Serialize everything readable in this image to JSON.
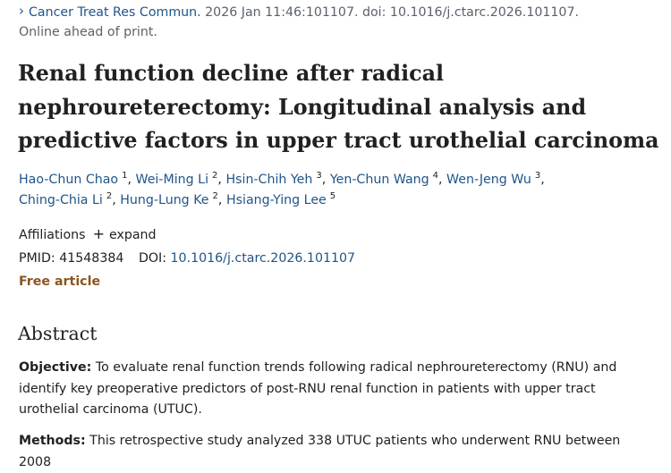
{
  "citation": {
    "journal": "Cancer Treat Res Commun.",
    "details": "2026 Jan 11:46:101107. doi: 10.1016/j.ctarc.2026.101107.",
    "status": "Online ahead of print."
  },
  "title": "Renal function decline after radical nephroureterectomy: Longitudinal analysis and predictive factors in upper tract urothelial carcinoma",
  "authors": [
    {
      "name": "Hao-Chun Chao",
      "aff": "1"
    },
    {
      "name": "Wei-Ming Li",
      "aff": "2"
    },
    {
      "name": "Hsin-Chih Yeh",
      "aff": "3"
    },
    {
      "name": "Yen-Chun Wang",
      "aff": "4"
    },
    {
      "name": "Wen-Jeng Wu",
      "aff": "3"
    },
    {
      "name": "Ching-Chia Li",
      "aff": "2"
    },
    {
      "name": "Hung-Lung Ke",
      "aff": "2"
    },
    {
      "name": "Hsiang-Ying Lee",
      "aff": "5"
    }
  ],
  "affiliations": {
    "label": "Affiliations",
    "expand": "expand"
  },
  "ids": {
    "pmid_label": "PMID:",
    "pmid": "41548384",
    "doi_label": "DOI:",
    "doi": "10.1016/j.ctarc.2026.101107"
  },
  "free_article": "Free article",
  "abstract": {
    "heading": "Abstract",
    "objective_label": "Objective:",
    "objective_text": "To evaluate renal function trends following radical nephroureterectomy (RNU) and identify key preoperative predictors of post-RNU renal function in patients with upper tract urothelial carcinoma (UTUC).",
    "methods_label": "Methods:",
    "methods_text": "This retrospective study analyzed 338 UTUC patients who underwent RNU between 2008"
  },
  "colors": {
    "link": "#20558a",
    "free_article": "#8a5522",
    "text": "#212121",
    "muted": "#5b616b"
  },
  "icons": {
    "journal_chevron": "chevron-right-icon",
    "expand": "plus-icon"
  }
}
